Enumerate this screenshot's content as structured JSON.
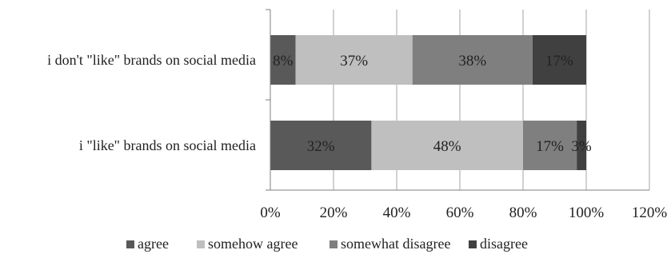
{
  "chart_data": {
    "type": "bar",
    "orientation": "horizontal",
    "stacked": true,
    "categories": [
      "i don't \"like\" brands on social media",
      "i \"like\" brands on social media"
    ],
    "series": [
      {
        "name": "agree",
        "values": [
          8,
          32
        ],
        "labels": [
          "8%",
          "32%"
        ],
        "color": "#595959"
      },
      {
        "name": "somehow agree",
        "values": [
          37,
          48
        ],
        "labels": [
          "37%",
          "48%"
        ],
        "color": "#bfbfbf"
      },
      {
        "name": "somewhat disagree",
        "values": [
          38,
          17
        ],
        "labels": [
          "38%",
          "17%"
        ],
        "color": "#7f7f7f"
      },
      {
        "name": "disagree",
        "values": [
          17,
          3
        ],
        "labels": [
          "17%",
          "3%"
        ],
        "color": "#404040"
      }
    ],
    "x_ticks": [
      "0%",
      "20%",
      "40%",
      "60%",
      "80%",
      "100%",
      "120%"
    ],
    "xlim": [
      0,
      120
    ],
    "grid": true,
    "legend_position": "bottom",
    "label_text_color": "#222222"
  }
}
